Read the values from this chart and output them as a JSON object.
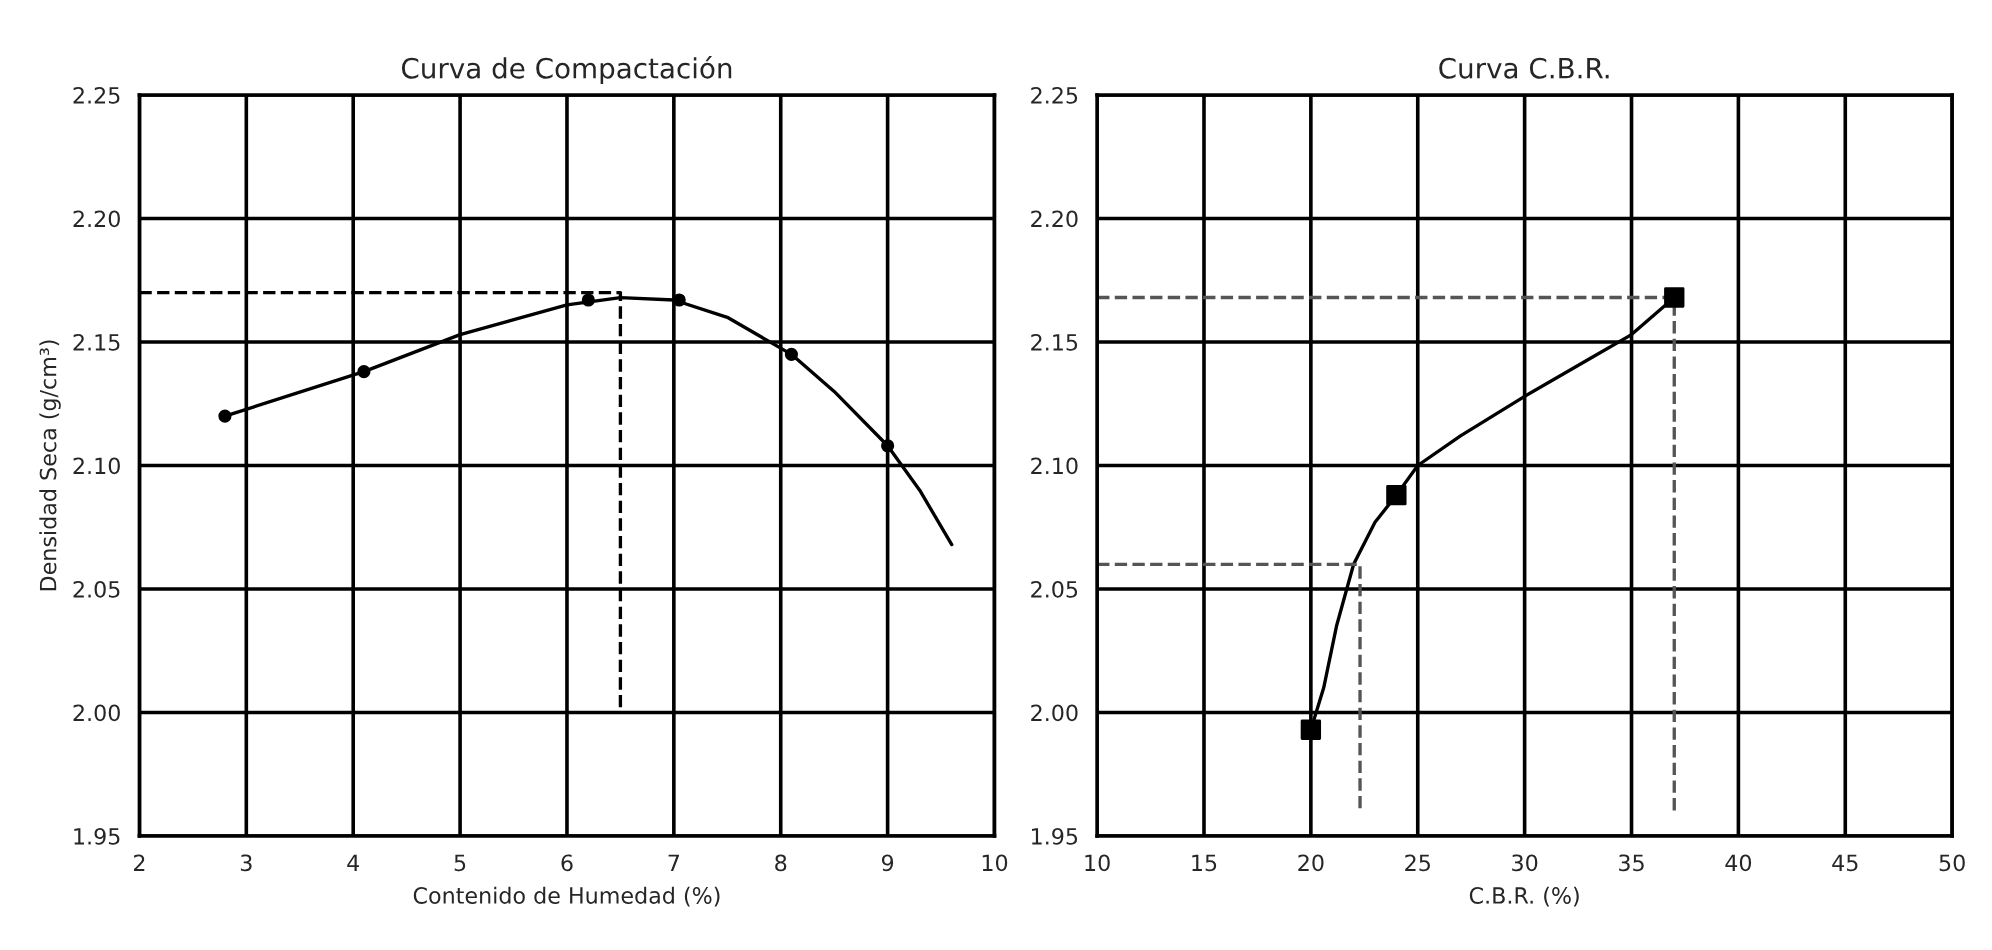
{
  "chart_data": [
    {
      "type": "line",
      "title": "Curva de Compactación",
      "xlabel": "Contenido de Humedad (%)",
      "ylabel": "Densidad Seca (g/cm³)",
      "xlim": [
        2,
        10
      ],
      "xticks": [
        2,
        3,
        4,
        5,
        6,
        7,
        8,
        9,
        10
      ],
      "ylim": [
        1.95,
        2.25
      ],
      "yticks": [
        {
          "value": 1.95,
          "label": "1.95"
        },
        {
          "value": 2.0,
          "label": "2.00"
        },
        {
          "value": 2.05,
          "label": "2.05"
        },
        {
          "value": 2.1,
          "label": "2.10"
        },
        {
          "value": 2.15,
          "label": "2.15"
        },
        {
          "value": 2.2,
          "label": "2.20"
        },
        {
          "value": 2.25,
          "label": "2.25"
        }
      ],
      "grid": true,
      "series": [
        {
          "color": "#000000",
          "marker": "none",
          "line_style": "solid",
          "x": [
            2.8,
            4.1,
            5.0,
            6.0,
            6.5,
            7.0,
            7.5,
            8.1,
            8.5,
            9.0,
            9.3,
            9.6
          ],
          "values": [
            2.12,
            2.138,
            2.153,
            2.165,
            2.168,
            2.167,
            2.16,
            2.145,
            2.13,
            2.108,
            2.09,
            2.068
          ]
        },
        {
          "type": "scatter",
          "color": "#000000",
          "marker": "circle",
          "x": [
            2.8,
            4.1,
            6.2,
            7.05,
            8.1,
            9.0
          ],
          "values": [
            2.12,
            2.138,
            2.167,
            2.167,
            2.145,
            2.108
          ]
        },
        {
          "color": "#000000",
          "marker": "none",
          "line_style": "dashed",
          "x": [
            2,
            6.5,
            6.5
          ],
          "values": [
            2.17,
            2.17,
            2.0
          ]
        }
      ]
    },
    {
      "type": "line",
      "title": "Curva C.B.R.",
      "xlabel": "C.B.R. (%)",
      "xlim": [
        10,
        50
      ],
      "xticks": [
        10,
        15,
        20,
        25,
        30,
        35,
        40,
        45,
        50
      ],
      "ylim": [
        1.95,
        2.25
      ],
      "yticks": [
        {
          "value": 1.95,
          "label": "1.95"
        },
        {
          "value": 2.0,
          "label": "2.00"
        },
        {
          "value": 2.05,
          "label": "2.05"
        },
        {
          "value": 2.1,
          "label": "2.10"
        },
        {
          "value": 2.15,
          "label": "2.15"
        },
        {
          "value": 2.2,
          "label": "2.20"
        },
        {
          "value": 2.25,
          "label": "2.25"
        }
      ],
      "grid": true,
      "series": [
        {
          "color": "#000000",
          "marker": "none",
          "line_style": "solid",
          "x": [
            20,
            20.6,
            21.2,
            22.0,
            23.0,
            24.0,
            25.0,
            27.0,
            30.0,
            33.0,
            35.0,
            37.0
          ],
          "values": [
            1.993,
            2.01,
            2.035,
            2.06,
            2.077,
            2.088,
            2.1,
            2.112,
            2.128,
            2.143,
            2.153,
            2.168
          ]
        },
        {
          "type": "scatter",
          "color": "#000000",
          "marker": "square",
          "x": [
            20,
            24,
            37
          ],
          "values": [
            1.993,
            2.088,
            2.168
          ]
        },
        {
          "color": "#555555",
          "marker": "none",
          "line_style": "dashed",
          "x": [
            10,
            22.3,
            22.3
          ],
          "values": [
            2.06,
            2.06,
            1.96
          ]
        },
        {
          "color": "#555555",
          "marker": "none",
          "line_style": "dashed",
          "x": [
            10,
            37,
            37
          ],
          "values": [
            2.168,
            2.168,
            1.96
          ]
        }
      ]
    }
  ]
}
